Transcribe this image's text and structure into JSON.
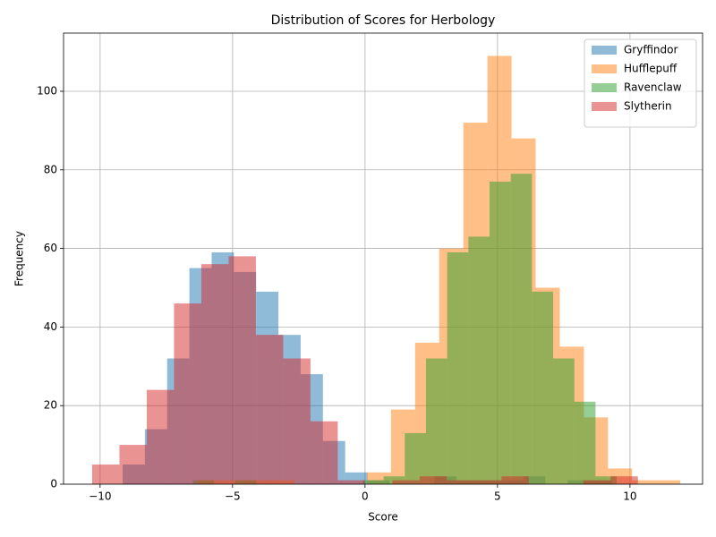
{
  "chart_data": {
    "type": "histogram",
    "title": "Distribution of Scores for Herbology",
    "x_label": "Score",
    "y_label": "Frequency",
    "xlim": [
      -11.38,
      12.74
    ],
    "ylim": [
      0,
      114.8
    ],
    "xticks": [
      {
        "value": -10,
        "label": "−10"
      },
      {
        "value": -5,
        "label": "−5"
      },
      0,
      5,
      10
    ],
    "yticks": [
      0,
      20,
      40,
      60,
      80,
      100
    ],
    "grid": true,
    "legend": "upper right",
    "series": [
      {
        "name": "Gryffindor",
        "color": "#1f77b4",
        "bins": [
          -9.15,
          -8.31,
          -7.47,
          -6.63,
          -5.79,
          -4.95,
          -4.11,
          -3.27,
          -2.43,
          -1.59,
          -0.75,
          0.09,
          0.93,
          1.77,
          2.61,
          3.45,
          4.29,
          5.13,
          5.97,
          6.81,
          7.65,
          8.49,
          9.33
        ],
        "values": [
          5,
          14,
          32,
          55,
          59,
          54,
          49,
          38,
          28,
          11,
          3,
          1,
          0,
          0,
          2,
          1,
          1,
          1,
          2,
          0,
          1,
          1
        ]
      },
      {
        "name": "Hufflepuff",
        "color": "#ff7f0e",
        "bins": [
          -6.3,
          -5.39,
          -4.48,
          -3.57,
          -2.66,
          -1.75,
          -0.84,
          0.07,
          0.98,
          1.89,
          2.8,
          3.71,
          4.62,
          5.53,
          6.44,
          7.35,
          8.26,
          9.17,
          10.08,
          10.99,
          11.9
        ],
        "values": [
          1,
          1,
          1,
          1,
          0,
          0,
          0,
          3,
          19,
          36,
          60,
          92,
          109,
          88,
          50,
          35,
          17,
          4,
          1,
          1
        ]
      },
      {
        "name": "Ravenclaw",
        "color": "#2ca02c",
        "bins": [
          -6.5,
          -5.7,
          -4.9,
          -4.1,
          -3.3,
          -2.5,
          -1.7,
          -0.9,
          -0.1,
          0.7,
          1.5,
          2.3,
          3.1,
          3.9,
          4.7,
          5.5,
          6.3,
          7.1,
          7.9,
          8.7,
          9.5
        ],
        "values": [
          1,
          0,
          1,
          0,
          0,
          0,
          0,
          0,
          1,
          2,
          13,
          32,
          59,
          63,
          77,
          79,
          49,
          32,
          21,
          2
        ]
      },
      {
        "name": "Slytherin",
        "color": "#d62728",
        "bins": [
          -10.3,
          -9.27,
          -8.24,
          -7.21,
          -6.18,
          -5.15,
          -4.12,
          -3.09,
          -2.06,
          -1.03,
          0,
          1.03,
          2.06,
          3.09,
          4.12,
          5.15,
          6.18,
          7.21,
          8.24,
          9.27,
          10.3
        ],
        "values": [
          5,
          10,
          24,
          46,
          56,
          58,
          38,
          32,
          16,
          1,
          0,
          1,
          2,
          1,
          1,
          2,
          0,
          0,
          1,
          2
        ]
      }
    ]
  }
}
